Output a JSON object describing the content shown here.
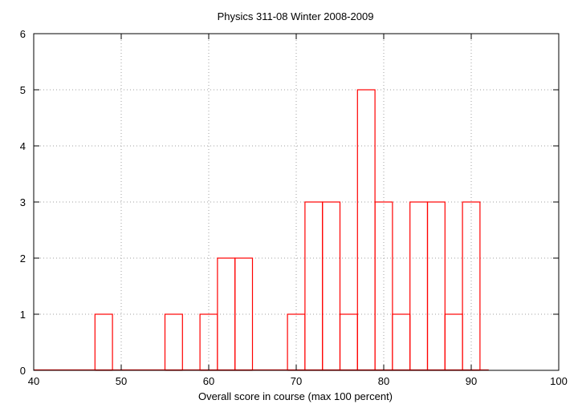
{
  "chart_data": {
    "type": "bar",
    "title": "Physics 311-08 Winter 2008-2009",
    "xlabel": "Overall score in course (max 100 percent)",
    "ylabel": "",
    "xlim": [
      40,
      100
    ],
    "ylim": [
      0,
      6
    ],
    "x_ticks": [
      40,
      50,
      60,
      70,
      80,
      90,
      100
    ],
    "y_ticks": [
      0,
      1,
      2,
      3,
      4,
      5,
      6
    ],
    "bin_width": 2,
    "bins": [
      {
        "x": 48,
        "count": 1
      },
      {
        "x": 56,
        "count": 1
      },
      {
        "x": 60,
        "count": 1
      },
      {
        "x": 62,
        "count": 2
      },
      {
        "x": 64,
        "count": 2
      },
      {
        "x": 70,
        "count": 1
      },
      {
        "x": 72,
        "count": 3
      },
      {
        "x": 74,
        "count": 3
      },
      {
        "x": 76,
        "count": 1
      },
      {
        "x": 78,
        "count": 5
      },
      {
        "x": 80,
        "count": 3
      },
      {
        "x": 82,
        "count": 1
      },
      {
        "x": 84,
        "count": 3
      },
      {
        "x": 86,
        "count": 3
      },
      {
        "x": 88,
        "count": 1
      },
      {
        "x": 90,
        "count": 3
      }
    ],
    "grid": true,
    "colors": {
      "bars": "#ff0000",
      "grid": "#a0a0a0",
      "axes": "#000000"
    }
  }
}
